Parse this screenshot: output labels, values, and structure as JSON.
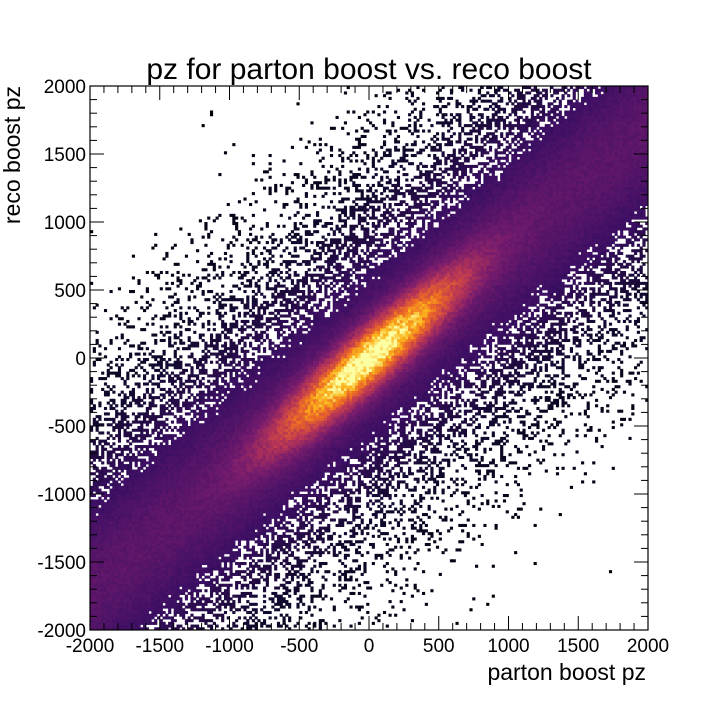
{
  "chart_data": {
    "type": "heatmap",
    "title": "pz for parton boost vs. reco boost",
    "xlabel": "parton boost pz",
    "ylabel": "reco boost pz",
    "xlim": [
      -2000,
      2000
    ],
    "ylim": [
      -2000,
      2000
    ],
    "xticks": [
      "-2000",
      "-1500",
      "-1000",
      "-500",
      "0",
      "500",
      "1000",
      "1500",
      "2000"
    ],
    "yticks": [
      "-2000",
      "-1500",
      "-1000",
      "-500",
      "0",
      "500",
      "1000",
      "1500",
      "2000"
    ],
    "grid": false,
    "colormap": "inferno",
    "bins": [
      200,
      200
    ],
    "density_model": {
      "slope": 0.85,
      "core_sigma": 150,
      "core_spread": 430,
      "halo_sigma": 430,
      "outer_sigma": 900,
      "sparse_threshold": 0.08
    }
  },
  "colors": {
    "background": "#ffffff",
    "frame": "#000000",
    "cmap_low": "#000004",
    "cmap_mid": "#781c6d",
    "cmap_high": "#fcffa4"
  }
}
